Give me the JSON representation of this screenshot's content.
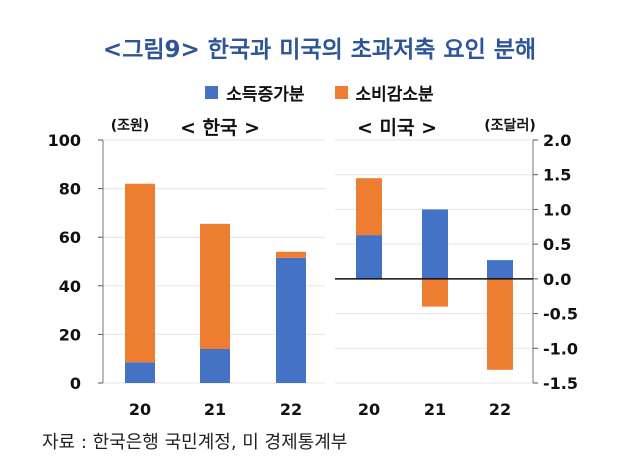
{
  "title": "<그림9>  한국과 미국의 초과저축 요인 분해",
  "legend": [
    {
      "label": "소득증가분",
      "color": "#4472c4"
    },
    {
      "label": "소비감소분",
      "color": "#ed7d31"
    }
  ],
  "source": "자료 : 한국은행 국민계정, 미 경제통계부",
  "chart_data": [
    {
      "type": "bar",
      "stacked": true,
      "title": "< 한국 >",
      "ylabel": "(조원)",
      "categories": [
        "20",
        "21",
        "22"
      ],
      "ylim": [
        0,
        100
      ],
      "yticks": [
        0,
        20,
        40,
        60,
        80,
        100
      ],
      "ytick_labels": [
        "0",
        "20",
        "40",
        "60",
        "80",
        "100"
      ],
      "axis_side": "left",
      "grid": true,
      "series": [
        {
          "name": "소득증가분",
          "values": [
            8.5,
            14,
            51.5
          ]
        },
        {
          "name": "소비감소분",
          "values": [
            73.5,
            51.5,
            2.5
          ]
        }
      ]
    },
    {
      "type": "bar",
      "stacked": true,
      "title": "< 미국 >",
      "ylabel": "(조달러)",
      "categories": [
        "20",
        "21",
        "22"
      ],
      "ylim": [
        -1.5,
        2.0
      ],
      "yticks": [
        -1.5,
        -1.0,
        -0.5,
        0,
        0.5,
        1.0,
        1.5,
        2.0
      ],
      "ytick_labels": [
        "-1.5",
        "-1.0",
        "-0.5",
        "0.0",
        "0.5",
        "1.0",
        "1.5",
        "2.0"
      ],
      "axis_side": "right",
      "grid": true,
      "series": [
        {
          "name": "소득증가분",
          "values": [
            0.63,
            1.0,
            0.27
          ]
        },
        {
          "name": "소비감소분",
          "values": [
            0.82,
            -0.4,
            -1.31
          ]
        }
      ]
    }
  ]
}
